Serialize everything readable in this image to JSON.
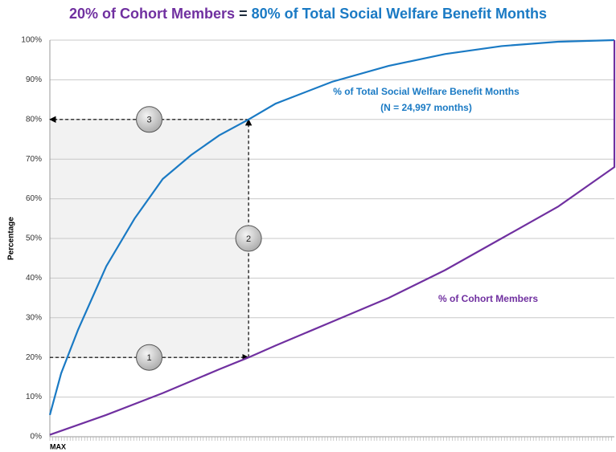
{
  "chart_data": {
    "type": "line",
    "title_parts": [
      "20% of Cohort Members",
      "=",
      "80% of Total Social Welfare Benefit Months"
    ],
    "title_colors": [
      "#7030a0",
      "#1f2d3d",
      "#1a7ac4"
    ],
    "ylabel": "Percentage",
    "x_label": "MAX",
    "xlim": [
      0,
      100
    ],
    "ylim": [
      0,
      100
    ],
    "yticks": [
      {
        "value": 0,
        "label": "0%"
      },
      {
        "value": 10,
        "label": "10%"
      },
      {
        "value": 20,
        "label": "20%"
      },
      {
        "value": 30,
        "label": "30%"
      },
      {
        "value": 40,
        "label": "40%"
      },
      {
        "value": 50,
        "label": "50%"
      },
      {
        "value": 60,
        "label": "60%"
      },
      {
        "value": 70,
        "label": "70%"
      },
      {
        "value": 80,
        "label": "80%"
      },
      {
        "value": 90,
        "label": "90%"
      },
      {
        "value": 100,
        "label": "100%"
      }
    ],
    "grid": true,
    "series": [
      {
        "name": "% of Total Social Welfare Benefit Months",
        "note": "(N = 24,997 months)",
        "color": "#1a7ac4",
        "x": [
          0,
          2,
          5,
          10,
          15,
          20,
          25,
          30,
          35.2,
          40,
          50,
          60,
          70,
          80,
          90,
          100
        ],
        "values": [
          5.5,
          16,
          27,
          43,
          55,
          65,
          71,
          76,
          80,
          84,
          89.5,
          93.5,
          96.5,
          98.5,
          99.6,
          100
        ]
      },
      {
        "name": "% of Cohort Members",
        "color": "#7030a0",
        "x": [
          0,
          10,
          20,
          30,
          35.2,
          40,
          50,
          60,
          70,
          80,
          90,
          100,
          100
        ],
        "values": [
          0.5,
          5.5,
          11,
          17,
          20,
          23,
          29,
          35,
          42,
          50,
          58,
          68,
          100
        ]
      }
    ],
    "guide": {
      "x": 35.2,
      "y_low": 20,
      "y_high": 80
    },
    "steps": [
      "1",
      "2",
      "3"
    ]
  }
}
